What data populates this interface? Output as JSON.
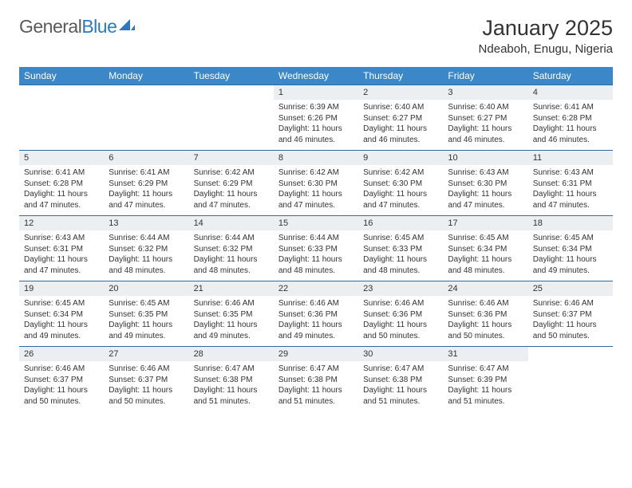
{
  "logo": {
    "text_gray": "General",
    "text_blue": "Blue"
  },
  "title": "January 2025",
  "location": "Ndeaboh, Enugu, Nigeria",
  "colors": {
    "header_bg": "#3b87c8",
    "header_text": "#ffffff",
    "daynum_bg": "#eceff1",
    "row_border": "#2f6aa0",
    "text": "#333333",
    "logo_gray": "#5a5a5a",
    "logo_blue": "#2c79c0",
    "page_bg": "#ffffff"
  },
  "day_headers": [
    "Sunday",
    "Monday",
    "Tuesday",
    "Wednesday",
    "Thursday",
    "Friday",
    "Saturday"
  ],
  "weeks": [
    [
      {
        "n": "",
        "sr": "",
        "ss": "",
        "dl": ""
      },
      {
        "n": "",
        "sr": "",
        "ss": "",
        "dl": ""
      },
      {
        "n": "",
        "sr": "",
        "ss": "",
        "dl": ""
      },
      {
        "n": "1",
        "sr": "6:39 AM",
        "ss": "6:26 PM",
        "dl": "11 hours and 46 minutes."
      },
      {
        "n": "2",
        "sr": "6:40 AM",
        "ss": "6:27 PM",
        "dl": "11 hours and 46 minutes."
      },
      {
        "n": "3",
        "sr": "6:40 AM",
        "ss": "6:27 PM",
        "dl": "11 hours and 46 minutes."
      },
      {
        "n": "4",
        "sr": "6:41 AM",
        "ss": "6:28 PM",
        "dl": "11 hours and 46 minutes."
      }
    ],
    [
      {
        "n": "5",
        "sr": "6:41 AM",
        "ss": "6:28 PM",
        "dl": "11 hours and 47 minutes."
      },
      {
        "n": "6",
        "sr": "6:41 AM",
        "ss": "6:29 PM",
        "dl": "11 hours and 47 minutes."
      },
      {
        "n": "7",
        "sr": "6:42 AM",
        "ss": "6:29 PM",
        "dl": "11 hours and 47 minutes."
      },
      {
        "n": "8",
        "sr": "6:42 AM",
        "ss": "6:30 PM",
        "dl": "11 hours and 47 minutes."
      },
      {
        "n": "9",
        "sr": "6:42 AM",
        "ss": "6:30 PM",
        "dl": "11 hours and 47 minutes."
      },
      {
        "n": "10",
        "sr": "6:43 AM",
        "ss": "6:30 PM",
        "dl": "11 hours and 47 minutes."
      },
      {
        "n": "11",
        "sr": "6:43 AM",
        "ss": "6:31 PM",
        "dl": "11 hours and 47 minutes."
      }
    ],
    [
      {
        "n": "12",
        "sr": "6:43 AM",
        "ss": "6:31 PM",
        "dl": "11 hours and 47 minutes."
      },
      {
        "n": "13",
        "sr": "6:44 AM",
        "ss": "6:32 PM",
        "dl": "11 hours and 48 minutes."
      },
      {
        "n": "14",
        "sr": "6:44 AM",
        "ss": "6:32 PM",
        "dl": "11 hours and 48 minutes."
      },
      {
        "n": "15",
        "sr": "6:44 AM",
        "ss": "6:33 PM",
        "dl": "11 hours and 48 minutes."
      },
      {
        "n": "16",
        "sr": "6:45 AM",
        "ss": "6:33 PM",
        "dl": "11 hours and 48 minutes."
      },
      {
        "n": "17",
        "sr": "6:45 AM",
        "ss": "6:34 PM",
        "dl": "11 hours and 48 minutes."
      },
      {
        "n": "18",
        "sr": "6:45 AM",
        "ss": "6:34 PM",
        "dl": "11 hours and 49 minutes."
      }
    ],
    [
      {
        "n": "19",
        "sr": "6:45 AM",
        "ss": "6:34 PM",
        "dl": "11 hours and 49 minutes."
      },
      {
        "n": "20",
        "sr": "6:45 AM",
        "ss": "6:35 PM",
        "dl": "11 hours and 49 minutes."
      },
      {
        "n": "21",
        "sr": "6:46 AM",
        "ss": "6:35 PM",
        "dl": "11 hours and 49 minutes."
      },
      {
        "n": "22",
        "sr": "6:46 AM",
        "ss": "6:36 PM",
        "dl": "11 hours and 49 minutes."
      },
      {
        "n": "23",
        "sr": "6:46 AM",
        "ss": "6:36 PM",
        "dl": "11 hours and 50 minutes."
      },
      {
        "n": "24",
        "sr": "6:46 AM",
        "ss": "6:36 PM",
        "dl": "11 hours and 50 minutes."
      },
      {
        "n": "25",
        "sr": "6:46 AM",
        "ss": "6:37 PM",
        "dl": "11 hours and 50 minutes."
      }
    ],
    [
      {
        "n": "26",
        "sr": "6:46 AM",
        "ss": "6:37 PM",
        "dl": "11 hours and 50 minutes."
      },
      {
        "n": "27",
        "sr": "6:46 AM",
        "ss": "6:37 PM",
        "dl": "11 hours and 50 minutes."
      },
      {
        "n": "28",
        "sr": "6:47 AM",
        "ss": "6:38 PM",
        "dl": "11 hours and 51 minutes."
      },
      {
        "n": "29",
        "sr": "6:47 AM",
        "ss": "6:38 PM",
        "dl": "11 hours and 51 minutes."
      },
      {
        "n": "30",
        "sr": "6:47 AM",
        "ss": "6:38 PM",
        "dl": "11 hours and 51 minutes."
      },
      {
        "n": "31",
        "sr": "6:47 AM",
        "ss": "6:39 PM",
        "dl": "11 hours and 51 minutes."
      },
      {
        "n": "",
        "sr": "",
        "ss": "",
        "dl": ""
      }
    ]
  ],
  "labels": {
    "sunrise": "Sunrise:",
    "sunset": "Sunset:",
    "daylight": "Daylight:"
  }
}
